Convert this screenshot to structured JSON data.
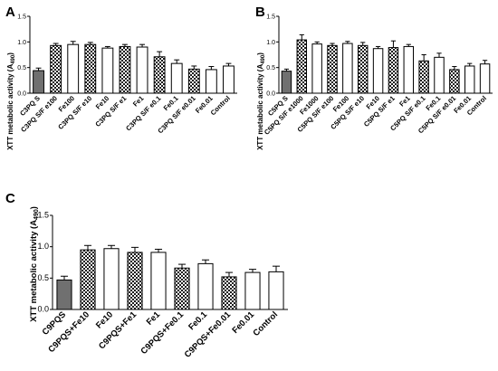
{
  "colors": {
    "solid_bar": "#707070",
    "checker_dark": "#1a1a1a",
    "checker_light": "#ffffff",
    "open_bar": "#ffffff",
    "error_bar": "#000000"
  },
  "chart_data": [
    {
      "panel": "A",
      "type": "bar",
      "ylabel_main": "XTT metabolic activity (A",
      "ylabel_sub": "490",
      "ylabel_close": ")",
      "ylim": [
        0,
        1.5
      ],
      "yticks": [
        "0.0",
        "0.5",
        "1.0",
        "1.5"
      ],
      "yticks_values": [
        0,
        0.5,
        1.0,
        1.5
      ],
      "categories": [
        "C3PQ S",
        "C3PQ S/F e100",
        "Fe100",
        "C3PQ S/F e10",
        "Fe10",
        "C3PQ S/F e1",
        "Fe1",
        "C3PQ S/F e0.1",
        "Fe0.1",
        "C3PQ S/F e0.01",
        "Fe0.01",
        "Control"
      ],
      "values": [
        0.44,
        0.93,
        0.95,
        0.95,
        0.88,
        0.91,
        0.9,
        0.71,
        0.58,
        0.47,
        0.46,
        0.53
      ],
      "errors": [
        0.05,
        0.04,
        0.06,
        0.04,
        0.03,
        0.04,
        0.05,
        0.1,
        0.07,
        0.06,
        0.06,
        0.05
      ],
      "fill": [
        "solid",
        "checker",
        "open",
        "checker",
        "open",
        "checker",
        "open",
        "checker",
        "open",
        "checker",
        "open",
        "open"
      ]
    },
    {
      "panel": "B",
      "type": "bar",
      "ylabel_main": "XTT metabolic activity (A",
      "ylabel_sub": "490",
      "ylabel_close": ")",
      "ylim": [
        0,
        1.5
      ],
      "yticks": [
        "0.0",
        "0.5",
        "1.0",
        "1.5"
      ],
      "yticks_values": [
        0,
        0.5,
        1.0,
        1.5
      ],
      "categories": [
        "C5PQ S",
        "C5PQ S/F e1000",
        "Fe1000",
        "C5PQ S/F e100",
        "Fe100",
        "C5PQ S/F e10",
        "Fe10",
        "C5PQ S/F e1",
        "Fe1",
        "C5PQ S/F e0.1",
        "Fe0.1",
        "C5PQ S/F e0.01",
        "Fe0.01",
        "Control"
      ],
      "values": [
        0.43,
        1.04,
        0.96,
        0.93,
        0.97,
        0.93,
        0.87,
        0.89,
        0.91,
        0.63,
        0.7,
        0.46,
        0.53,
        0.57
      ],
      "errors": [
        0.04,
        0.1,
        0.04,
        0.04,
        0.04,
        0.06,
        0.04,
        0.13,
        0.04,
        0.12,
        0.08,
        0.06,
        0.05,
        0.07
      ],
      "fill": [
        "solid",
        "checker",
        "open",
        "checker",
        "open",
        "checker",
        "open",
        "checker",
        "open",
        "checker",
        "open",
        "checker",
        "open",
        "open"
      ]
    },
    {
      "panel": "C",
      "type": "bar",
      "ylabel_main": "XTT metabolic activity (A",
      "ylabel_sub": "490",
      "ylabel_close": ")",
      "ylim": [
        0,
        1.5
      ],
      "yticks": [
        "0.0",
        "0.5",
        "1.0",
        "1.5"
      ],
      "yticks_values": [
        0,
        0.5,
        1.0,
        1.5
      ],
      "categories": [
        "C9PQS",
        "C9PQS+Fe10",
        "Fe10",
        "C9PQS+Fe1",
        "Fe1",
        "C9PQS+Fe0.1",
        "Fe0.1",
        "C9PQS+Fe0.01",
        "Fe0.01",
        "Control"
      ],
      "values": [
        0.47,
        0.95,
        0.97,
        0.91,
        0.91,
        0.66,
        0.73,
        0.52,
        0.59,
        0.6
      ],
      "errors": [
        0.06,
        0.07,
        0.05,
        0.08,
        0.05,
        0.06,
        0.06,
        0.07,
        0.05,
        0.09
      ],
      "fill": [
        "solid",
        "checker",
        "open",
        "checker",
        "open",
        "checker",
        "open",
        "checker",
        "open",
        "open"
      ]
    }
  ]
}
